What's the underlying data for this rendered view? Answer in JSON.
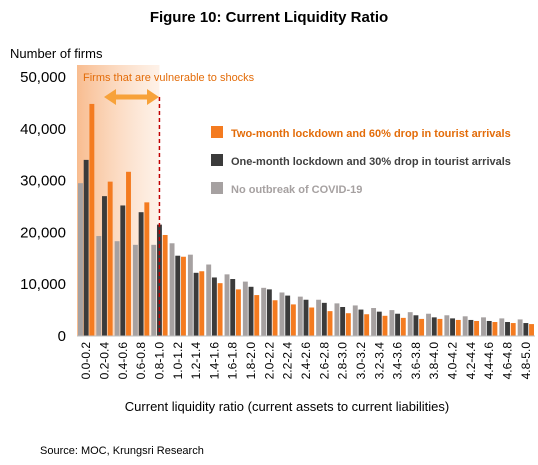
{
  "chart_data": {
    "type": "bar",
    "title": "Figure 10: Current Liquidity Ratio",
    "ylabel": "Number of firms",
    "xlabel": "Current liquidity ratio (current assets to current liabilities)",
    "source": "Source: MOC, Krungsri Research",
    "ylim": [
      0,
      50000
    ],
    "yticks": [
      "0",
      "10,000",
      "20,000",
      "30,000",
      "40,000",
      "50,000"
    ],
    "ytick_values": [
      0,
      10000,
      20000,
      30000,
      40000,
      50000
    ],
    "legend_position": "right",
    "annotation": {
      "text": "Firms that are vulnerable to shocks",
      "range_end_category": "0.8-1.0",
      "color": "#e36c09"
    },
    "categories": [
      "0.0-0.2",
      "0.2-0.4",
      "0.4-0.6",
      "0.6-0.8",
      "0.8-1.0",
      "1.0-1.2",
      "1.2-1.4",
      "1.4-1.6",
      "1.6-1.8",
      "1.8-2.0",
      "2.0-2.2",
      "2.2-2.4",
      "2.4-2.6",
      "2.6-2.8",
      "2.8-3.0",
      "3.0-3.2",
      "3.2-3.4",
      "3.4-3.6",
      "3.6-3.8",
      "3.8-4.0",
      "4.0-4.2",
      "4.2-4.4",
      "4.4-4.6",
      "4.6-4.8",
      "4.8-5.0"
    ],
    "series": [
      {
        "name": "No outbreak of COVID-19",
        "color": "#a6a1a1",
        "values": [
          29500,
          19300,
          18300,
          17600,
          17600,
          17900,
          15700,
          13800,
          11900,
          10500,
          9300,
          8400,
          7600,
          7000,
          6300,
          5900,
          5400,
          5000,
          4600,
          4300,
          4000,
          3800,
          3600,
          3400,
          3200
        ]
      },
      {
        "name": "One-month lockdown and 30% drop in tourist arrivals",
        "color": "#3b3b3b",
        "values": [
          34000,
          27000,
          25200,
          23900,
          21500,
          15500,
          12200,
          11300,
          11000,
          9500,
          9000,
          7800,
          7000,
          6400,
          5600,
          5100,
          4700,
          4300,
          4000,
          3600,
          3400,
          3100,
          2900,
          2700,
          2500
        ]
      },
      {
        "name": "Two-month lockdown and 60% drop in tourist arrivals",
        "color": "#f47b20",
        "values": [
          44800,
          29800,
          31700,
          25800,
          19500,
          15300,
          12500,
          10200,
          9000,
          7900,
          6900,
          6100,
          5500,
          4800,
          4400,
          4200,
          3900,
          3500,
          3300,
          3300,
          3100,
          2900,
          2700,
          2500,
          2300
        ]
      }
    ]
  }
}
